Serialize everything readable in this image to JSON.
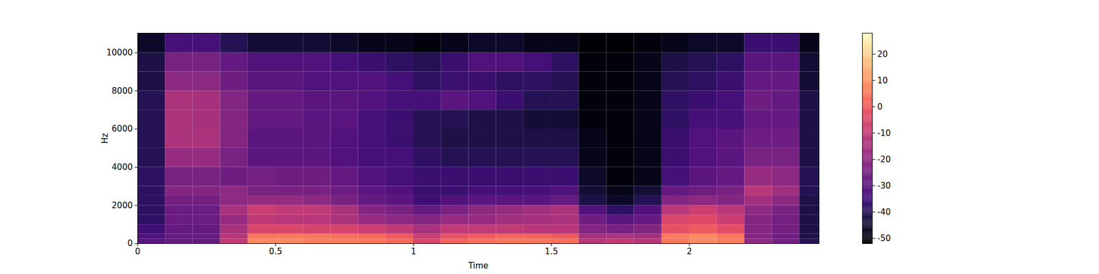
{
  "chart_data": {
    "type": "heatmap",
    "x_label": "Time",
    "y_label": "Hz",
    "xlim": [
      0,
      2.47
    ],
    "xticks": [
      0,
      0.5,
      1,
      1.5,
      2
    ],
    "ylim": [
      0,
      11025
    ],
    "yticks": [
      0,
      2000,
      4000,
      6000,
      8000,
      10000
    ],
    "color": "magma",
    "x_edges": [
      0,
      0.1,
      0.2,
      0.3,
      0.4,
      0.5,
      0.6,
      0.7,
      0.8,
      0.9,
      1.0,
      1.1,
      1.2,
      1.3,
      1.4,
      1.5,
      1.6,
      1.7,
      1.8,
      1.9,
      2.0,
      2.1,
      2.2,
      2.3,
      2.4,
      2.47
    ],
    "y_edges": [
      0,
      250,
      500,
      1000,
      1500,
      2000,
      2500,
      3000,
      4000,
      5000,
      6000,
      7000,
      8000,
      9000,
      10000,
      11025
    ],
    "cells": [
      [
        -30,
        -28,
        -28,
        -10,
        8,
        8,
        6,
        6,
        5,
        3,
        -5,
        2,
        4,
        5,
        5,
        4,
        -12,
        -10,
        -12,
        5,
        8,
        6,
        -20,
        -25,
        -40
      ],
      [
        -32,
        -28,
        -28,
        -12,
        5,
        6,
        5,
        4,
        3,
        0,
        -8,
        -2,
        0,
        2,
        2,
        0,
        -15,
        -14,
        -16,
        6,
        8,
        5,
        -22,
        -26,
        -42
      ],
      [
        -35,
        -28,
        -28,
        -15,
        -5,
        -5,
        -6,
        -6,
        -8,
        -10,
        -15,
        -10,
        -10,
        -10,
        -12,
        -12,
        -22,
        -24,
        -22,
        -2,
        0,
        -3,
        -22,
        -25,
        -42
      ],
      [
        -38,
        -27,
        -27,
        -18,
        -10,
        -12,
        -12,
        -14,
        -18,
        -20,
        -22,
        -18,
        -18,
        -16,
        -15,
        -14,
        -26,
        -30,
        -28,
        -5,
        -4,
        -8,
        -22,
        -25,
        -42
      ],
      [
        -38,
        -27,
        -27,
        -15,
        -8,
        -10,
        -10,
        -14,
        -22,
        -24,
        -28,
        -24,
        -20,
        -18,
        -16,
        -14,
        -32,
        -38,
        -32,
        -12,
        -8,
        -12,
        -20,
        -24,
        -42
      ],
      [
        -38,
        -25,
        -25,
        -20,
        -18,
        -18,
        -20,
        -24,
        -28,
        -30,
        -35,
        -32,
        -30,
        -30,
        -30,
        -28,
        -42,
        -46,
        -40,
        -22,
        -20,
        -22,
        -16,
        -20,
        -42
      ],
      [
        -38,
        -22,
        -22,
        -20,
        -24,
        -24,
        -24,
        -26,
        -30,
        -32,
        -36,
        -36,
        -34,
        -34,
        -34,
        -32,
        -44,
        -48,
        -44,
        -28,
        -26,
        -24,
        -12,
        -16,
        -40
      ],
      [
        -38,
        -24,
        -24,
        -26,
        -25,
        -26,
        -26,
        -28,
        -32,
        -34,
        -36,
        -36,
        -36,
        -36,
        -36,
        -36,
        -46,
        -50,
        -48,
        -34,
        -30,
        -28,
        -18,
        -20,
        -40
      ],
      [
        -40,
        -18,
        -18,
        -24,
        -30,
        -30,
        -30,
        -32,
        -34,
        -34,
        -38,
        -40,
        -40,
        -40,
        -40,
        -40,
        -48,
        -50,
        -48,
        -36,
        -32,
        -30,
        -24,
        -24,
        -42
      ],
      [
        -40,
        -14,
        -14,
        -22,
        -30,
        -30,
        -30,
        -32,
        -34,
        -36,
        -40,
        -42,
        -42,
        -42,
        -42,
        -42,
        -48,
        -50,
        -48,
        -36,
        -32,
        -30,
        -26,
        -26,
        -42
      ],
      [
        -40,
        -14,
        -15,
        -22,
        -28,
        -28,
        -30,
        -30,
        -34,
        -36,
        -40,
        -40,
        -42,
        -42,
        -44,
        -44,
        -50,
        -50,
        -48,
        -38,
        -34,
        -34,
        -28,
        -28,
        -42
      ],
      [
        -40,
        -14,
        -15,
        -22,
        -28,
        -28,
        -30,
        -30,
        -32,
        -34,
        -34,
        -30,
        -32,
        -36,
        -40,
        -40,
        -50,
        -50,
        -48,
        -38,
        -36,
        -34,
        -26,
        -28,
        -42
      ],
      [
        -42,
        -20,
        -20,
        -26,
        -30,
        -30,
        -32,
        -32,
        -32,
        -34,
        -38,
        -36,
        -36,
        -38,
        -38,
        -40,
        -50,
        -50,
        -48,
        -40,
        -38,
        -36,
        -28,
        -28,
        -44
      ],
      [
        -42,
        -24,
        -24,
        -28,
        -32,
        -32,
        -32,
        -34,
        -36,
        -38,
        -40,
        -36,
        -32,
        -32,
        -34,
        -38,
        -50,
        -50,
        -48,
        -42,
        -40,
        -38,
        -30,
        -30,
        -44
      ],
      [
        -46,
        -34,
        -34,
        -40,
        -44,
        -44,
        -44,
        -46,
        -48,
        -48,
        -50,
        -48,
        -46,
        -46,
        -48,
        -48,
        -52,
        -52,
        -50,
        -48,
        -46,
        -46,
        -36,
        -36,
        -48
      ]
    ],
    "colorbar": {
      "range": [
        -52,
        28
      ],
      "ticks": [
        -50,
        -40,
        -30,
        -20,
        -10,
        0,
        10,
        20
      ]
    }
  }
}
